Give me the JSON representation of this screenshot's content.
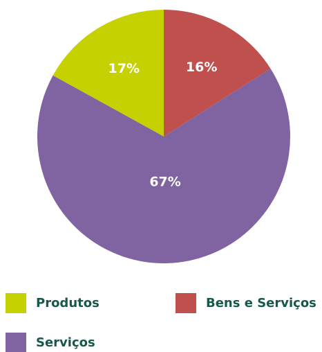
{
  "chart_data": {
    "type": "pie",
    "categories": [
      "Produtos",
      "Bens e Serviços",
      "Serviços"
    ],
    "values": [
      17,
      16,
      67
    ],
    "value_labels": [
      "17%",
      "16%",
      "67%"
    ],
    "colors": [
      "#c5d100",
      "#c0504d",
      "#8064a2"
    ],
    "legend": "bottom"
  }
}
